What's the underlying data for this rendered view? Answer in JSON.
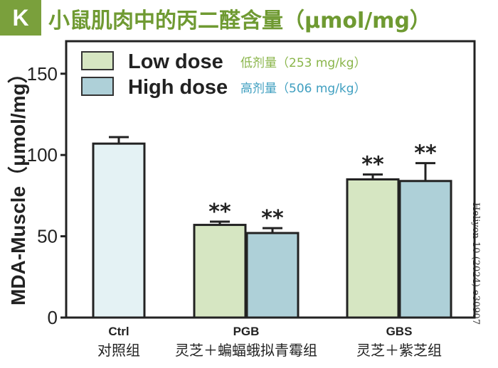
{
  "panel_label": "K",
  "credit": "Heliyon 10 (2024) e30907",
  "colors": {
    "accent": "#7aa03c",
    "title": "#6f9a32",
    "low": "#d6e6c2",
    "high": "#aed0d8",
    "ctrl": "#e4f2f4",
    "low_note": "#8ab54a",
    "high_note": "#3f9fc0"
  },
  "chart_data": {
    "type": "bar",
    "title": "小鼠肌肉中的丙二醛含量（μmol/mg）",
    "ylabel": "MDA-Muscle（μmol/mg）",
    "ylim": [
      0,
      170
    ],
    "yticks": [
      0,
      50,
      100,
      150
    ],
    "groups": [
      {
        "code": "Ctrl",
        "name": "对照组"
      },
      {
        "code": "PGB",
        "name": "灵芝＋蝙蝠蛾拟青霉组"
      },
      {
        "code": "GBS",
        "name": "灵芝＋紫芝组"
      }
    ],
    "series": [
      {
        "name": "Low dose",
        "note": "低剂量（253 mg/kg）",
        "values": [
          null,
          57,
          85
        ],
        "errors": [
          null,
          2,
          3
        ]
      },
      {
        "name": "High dose",
        "note": "高剂量（506 mg/kg）",
        "values": [
          null,
          52,
          84
        ],
        "errors": [
          null,
          3,
          11
        ]
      }
    ],
    "control": {
      "value": 107,
      "error": 4
    },
    "significance": [
      {
        "group": 1,
        "series": 0,
        "label": "**"
      },
      {
        "group": 1,
        "series": 1,
        "label": "**"
      },
      {
        "group": 2,
        "series": 0,
        "label": "**"
      },
      {
        "group": 2,
        "series": 1,
        "label": "**"
      }
    ],
    "legend_position": "top-left",
    "grid": false
  }
}
